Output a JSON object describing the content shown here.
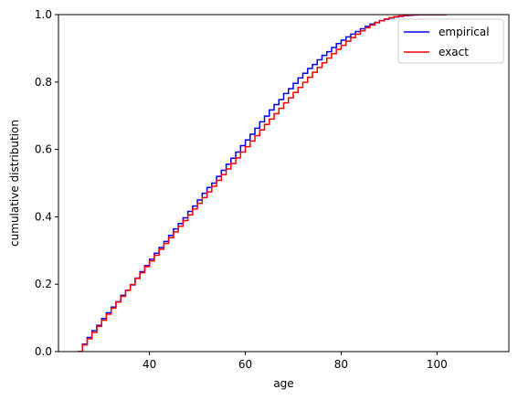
{
  "chart_data": {
    "type": "line",
    "xlabel": "age",
    "ylabel": "cumulative distribution",
    "xlim": [
      21,
      115
    ],
    "ylim": [
      0,
      1.0
    ],
    "xticks": [
      40,
      60,
      80,
      100
    ],
    "yticks": [
      0.0,
      0.2,
      0.4,
      0.6,
      0.8,
      1.0
    ],
    "xtick_labels": [
      "40",
      "60",
      "80",
      "100"
    ],
    "ytick_labels": [
      "0.0",
      "0.2",
      "0.4",
      "0.6",
      "0.8",
      "1.0"
    ],
    "legend_position": "top-right",
    "grid": false,
    "step_width": 1,
    "series": [
      {
        "name": "empirical",
        "color": "#0000ff",
        "x": [
          25,
          26,
          27,
          28,
          29,
          30,
          31,
          32,
          33,
          34,
          35,
          36,
          37,
          38,
          39,
          40,
          41,
          42,
          43,
          44,
          45,
          46,
          47,
          48,
          49,
          50,
          51,
          52,
          53,
          54,
          55,
          56,
          57,
          58,
          59,
          60,
          61,
          62,
          63,
          64,
          65,
          66,
          67,
          68,
          69,
          70,
          71,
          72,
          73,
          74,
          75,
          76,
          77,
          78,
          79,
          80,
          81,
          82,
          83,
          84,
          85,
          86,
          87,
          88,
          89,
          90,
          91,
          92,
          93,
          94,
          95,
          96,
          97,
          98,
          99,
          100,
          101
        ],
        "y": [
          0.0,
          0.022,
          0.042,
          0.062,
          0.078,
          0.098,
          0.115,
          0.132,
          0.148,
          0.167,
          0.182,
          0.198,
          0.218,
          0.237,
          0.255,
          0.274,
          0.292,
          0.309,
          0.327,
          0.345,
          0.364,
          0.38,
          0.397,
          0.416,
          0.432,
          0.45,
          0.47,
          0.487,
          0.5,
          0.52,
          0.538,
          0.556,
          0.574,
          0.592,
          0.611,
          0.628,
          0.645,
          0.663,
          0.682,
          0.699,
          0.717,
          0.733,
          0.748,
          0.766,
          0.78,
          0.796,
          0.812,
          0.826,
          0.84,
          0.852,
          0.866,
          0.879,
          0.89,
          0.902,
          0.914,
          0.924,
          0.934,
          0.942,
          0.95,
          0.958,
          0.965,
          0.972,
          0.977,
          0.982,
          0.986,
          0.99,
          0.993,
          0.995,
          0.997,
          0.998,
          0.999,
          1.0,
          1.0,
          1.0,
          1.0,
          1.0,
          1.0
        ]
      },
      {
        "name": "exact",
        "color": "#ff0000",
        "x": [
          25,
          26,
          27,
          28,
          29,
          30,
          31,
          32,
          33,
          34,
          35,
          36,
          37,
          38,
          39,
          40,
          41,
          42,
          43,
          44,
          45,
          46,
          47,
          48,
          49,
          50,
          51,
          52,
          53,
          54,
          55,
          56,
          57,
          58,
          59,
          60,
          61,
          62,
          63,
          64,
          65,
          66,
          67,
          68,
          69,
          70,
          71,
          72,
          73,
          74,
          75,
          76,
          77,
          78,
          79,
          80,
          81,
          82,
          83,
          84,
          85,
          86,
          87,
          88,
          89,
          90,
          91,
          92,
          93,
          94,
          95,
          96,
          97,
          98,
          99,
          100,
          101
        ],
        "y": [
          0.0,
          0.02,
          0.038,
          0.057,
          0.075,
          0.093,
          0.111,
          0.129,
          0.147,
          0.164,
          0.182,
          0.199,
          0.217,
          0.234,
          0.252,
          0.269,
          0.286,
          0.304,
          0.321,
          0.338,
          0.355,
          0.372,
          0.389,
          0.406,
          0.423,
          0.44,
          0.457,
          0.474,
          0.491,
          0.508,
          0.525,
          0.542,
          0.558,
          0.575,
          0.592,
          0.608,
          0.625,
          0.641,
          0.658,
          0.674,
          0.69,
          0.706,
          0.722,
          0.738,
          0.753,
          0.769,
          0.784,
          0.799,
          0.814,
          0.829,
          0.843,
          0.857,
          0.871,
          0.884,
          0.897,
          0.909,
          0.921,
          0.932,
          0.942,
          0.952,
          0.961,
          0.969,
          0.976,
          0.982,
          0.987,
          0.991,
          0.994,
          0.996,
          0.998,
          0.999,
          0.9995,
          1.0,
          1.0,
          1.0,
          1.0,
          1.0,
          1.0
        ]
      }
    ]
  }
}
